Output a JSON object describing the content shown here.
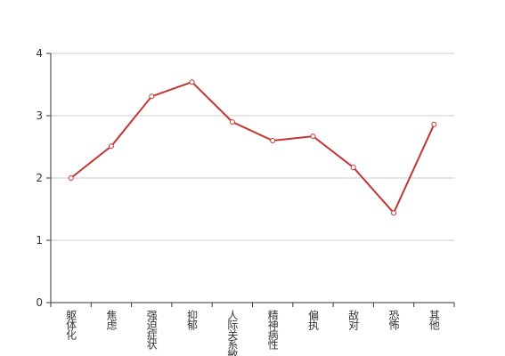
{
  "chart_data": {
    "type": "line",
    "categories": [
      "躯体化",
      "焦虑",
      "强迫症状",
      "抑郁",
      "人际关系敏感",
      "精神病性",
      "偏执",
      "敌对",
      "恐怖",
      "其他"
    ],
    "series": [
      {
        "color": "#c23531",
        "values": [
          2.0,
          2.51,
          3.31,
          3.54,
          2.9,
          2.6,
          2.67,
          2.17,
          1.44,
          2.86
        ]
      }
    ],
    "ylim": [
      0,
      4
    ],
    "yticks": [
      0,
      1,
      2,
      3,
      4
    ],
    "grid": true
  }
}
